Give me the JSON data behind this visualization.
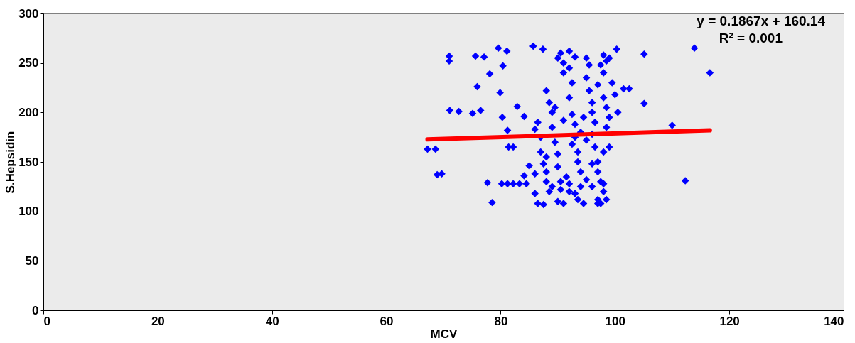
{
  "chart_data": {
    "type": "scatter",
    "xlabel": "MCV",
    "ylabel": "S.Hepsidin",
    "xlim": [
      0,
      140
    ],
    "xticks": [
      0,
      20,
      40,
      60,
      80,
      100,
      120,
      140
    ],
    "ylim": [
      0,
      300
    ],
    "yticks": [
      0,
      50,
      100,
      150,
      200,
      250,
      300
    ],
    "grid": false,
    "annotations": [
      "y = 0.1867x + 160.14",
      "R² = 0.001"
    ],
    "series": [
      {
        "color": "#0000ff",
        "marker": "diamond",
        "x": [
          67.2,
          68.6,
          68.9,
          69.7,
          71.0,
          71.0,
          71.1,
          72.7,
          75.1,
          76.5,
          75.6,
          77.1,
          75.9,
          78.1,
          78.5,
          77.7,
          79.6,
          81.1,
          79.9,
          80.4,
          80.3,
          81.2,
          81.4,
          82.2,
          80.2,
          81.2,
          82.2,
          83.3,
          82.9,
          84.1,
          84.1,
          85.7,
          87.4,
          113.9,
          116.6,
          105.1,
          110.0,
          112.3,
          105.1,
          100.3,
          86,
          86.5,
          87,
          87,
          87.5,
          88,
          88,
          88.5,
          86,
          86.5,
          87.5,
          88,
          88.5,
          89,
          89,
          89.5,
          90,
          90,
          90.5,
          90.5,
          91,
          91,
          90,
          90.5,
          91,
          92,
          92,
          92.5,
          92,
          92.5,
          93,
          93,
          93.5,
          93.5,
          94,
          94,
          93,
          92,
          94.5,
          95,
          95.5,
          95,
          95.5,
          96,
          96,
          96.5,
          96,
          96.5,
          97,
          97,
          97.5,
          97,
          97.5,
          98,
          98.5,
          98,
          98,
          98.5,
          99,
          98.5,
          99,
          98,
          98,
          98,
          98.5,
          99.5,
          100,
          100.5,
          96,
          95,
          92,
          89,
          88,
          91,
          94,
          97,
          95,
          96,
          90,
          93,
          89.5,
          92.5,
          85,
          84.5,
          86,
          99,
          97.5,
          94.5,
          91.5,
          101.5,
          102.5,
          97,
          93.5
        ],
        "values": [
          163,
          163,
          137,
          138,
          257,
          252,
          202,
          201,
          199,
          202,
          257,
          256,
          226,
          239,
          109,
          129,
          265,
          262,
          220,
          247,
          195,
          182,
          165,
          165,
          128,
          128,
          128,
          128,
          206,
          196,
          136,
          267,
          264,
          265,
          240,
          209,
          187,
          131,
          259,
          264,
          183,
          190,
          175,
          160,
          148,
          140,
          130,
          120,
          118,
          108,
          107,
          222,
          210,
          200,
          185,
          170,
          158,
          145,
          130,
          122,
          108,
          240,
          255,
          260,
          250,
          262,
          245,
          230,
          215,
          198,
          188,
          175,
          160,
          150,
          140,
          125,
          118,
          120,
          108,
          255,
          248,
          235,
          222,
          210,
          200,
          190,
          178,
          165,
          150,
          140,
          130,
          112,
          108,
          258,
          252,
          240,
          215,
          205,
          195,
          185,
          165,
          160,
          128,
          120,
          112,
          230,
          218,
          200,
          125,
          132,
          128,
          125,
          155,
          192,
          180,
          228,
          172,
          148,
          110,
          256,
          205,
          168,
          146,
          128,
          138,
          255,
          248,
          195,
          135,
          224,
          224,
          108,
          112
        ]
      },
      {
        "type": "line",
        "marker": "none",
        "color": "#ff0000",
        "x": [
          67.2,
          116.6
        ],
        "values": [
          172.7,
          181.9
        ]
      }
    ]
  }
}
